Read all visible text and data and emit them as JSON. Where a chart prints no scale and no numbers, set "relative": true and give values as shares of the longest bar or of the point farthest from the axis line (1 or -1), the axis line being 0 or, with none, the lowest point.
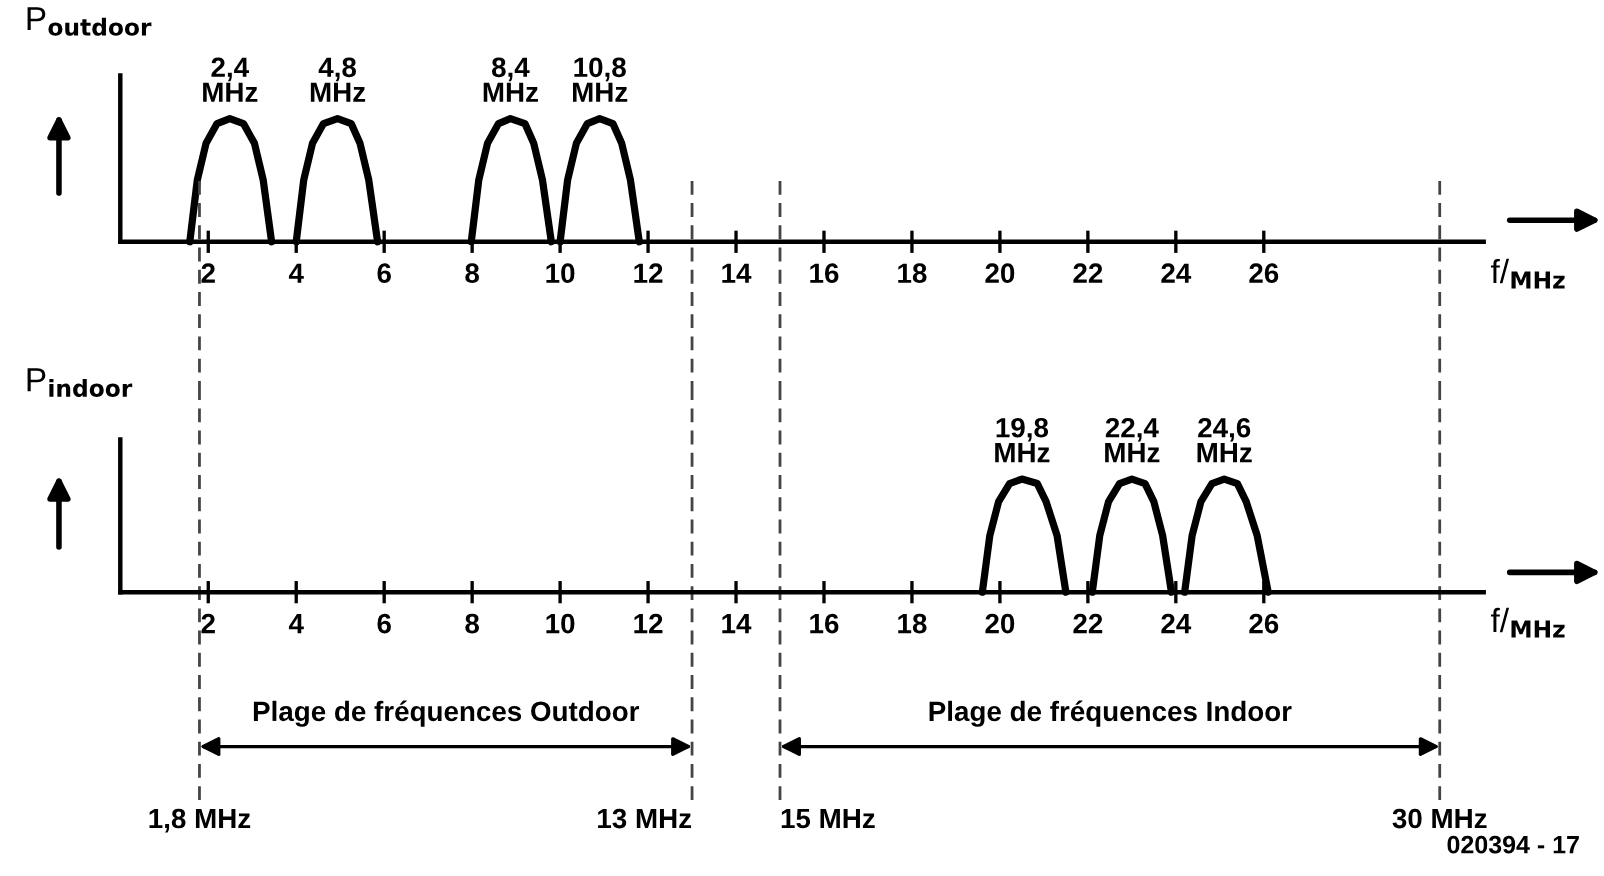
{
  "chart_data": [
    {
      "type": "line",
      "relative": true,
      "ylabel": "P$_{outdoor}$",
      "xlabel": "f/$_{MHz}$",
      "xlim": [
        0,
        31
      ],
      "xticks": [
        2,
        4,
        6,
        8,
        10,
        12,
        14,
        16,
        18,
        20,
        22,
        24,
        26
      ],
      "tick_labels": "x",
      "color": "#000000",
      "series": [
        {
          "x": [
            1.58,
            1.75,
            1.95,
            2.2,
            2.49,
            2.8,
            3.05,
            3.25,
            3.44
          ],
          "values": [
            0,
            0.5,
            0.8,
            0.96,
            1,
            0.96,
            0.8,
            0.5,
            0
          ]
        },
        {
          "x": [
            4.0,
            4.17,
            4.37,
            4.62,
            4.94,
            5.25,
            5.45,
            5.65,
            5.85
          ],
          "values": [
            0,
            0.5,
            0.8,
            0.96,
            1,
            0.96,
            0.8,
            0.5,
            0
          ]
        },
        {
          "x": [
            7.98,
            8.15,
            8.35,
            8.6,
            8.87,
            9.2,
            9.4,
            9.6,
            9.8
          ],
          "values": [
            0,
            0.5,
            0.8,
            0.96,
            1,
            0.96,
            0.8,
            0.5,
            0
          ]
        },
        {
          "x": [
            10.0,
            10.17,
            10.37,
            10.62,
            10.9,
            11.2,
            11.4,
            11.6,
            11.8
          ],
          "values": [
            0,
            0.5,
            0.8,
            0.96,
            1,
            0.96,
            0.8,
            0.5,
            0
          ]
        }
      ],
      "annotations": [
        {
          "text": "2,4\nMHz",
          "x": 2.49,
          "y": 1
        },
        {
          "text": "4,8\nMHz",
          "x": 4.94,
          "y": 1
        },
        {
          "text": "8,4\nMHz",
          "x": 8.87,
          "y": 1
        },
        {
          "text": "10,8\nMHz",
          "x": 10.9,
          "y": 1
        }
      ],
      "ref_lines": [
        {
          "axis": "x",
          "value": 1.8,
          "line_style": "dashed"
        },
        {
          "axis": "x",
          "value": 13,
          "line_style": "dashed"
        },
        {
          "axis": "x",
          "value": 15,
          "line_style": "dashed"
        },
        {
          "axis": "x",
          "value": 30,
          "line_style": "dashed"
        }
      ]
    },
    {
      "type": "line",
      "relative": true,
      "ylabel": "P$_{indoor}$",
      "xlabel": "f/$_{MHz}$",
      "xlim": [
        0,
        31
      ],
      "xticks": [
        2,
        4,
        6,
        8,
        10,
        12,
        14,
        16,
        18,
        20,
        22,
        24,
        26
      ],
      "tick_labels": "x",
      "color": "#000000",
      "series": [
        {
          "x": [
            19.6,
            19.77,
            19.97,
            20.22,
            20.5,
            20.85,
            21.05,
            21.3,
            21.5
          ],
          "values": [
            0,
            0.5,
            0.8,
            0.96,
            1,
            0.96,
            0.8,
            0.5,
            0
          ]
        },
        {
          "x": [
            22.1,
            22.27,
            22.47,
            22.72,
            23.0,
            23.3,
            23.5,
            23.7,
            23.9
          ],
          "values": [
            0,
            0.5,
            0.8,
            0.96,
            1,
            0.96,
            0.8,
            0.5,
            0
          ]
        },
        {
          "x": [
            24.2,
            24.37,
            24.57,
            24.82,
            25.1,
            25.4,
            25.6,
            25.85,
            26.1
          ],
          "values": [
            0,
            0.5,
            0.8,
            0.96,
            1,
            0.96,
            0.8,
            0.5,
            0
          ]
        }
      ],
      "annotations": [
        {
          "text": "19,8\nMHz",
          "x": 20.5,
          "y": 1
        },
        {
          "text": "22,4\nMHz",
          "x": 23.0,
          "y": 1
        },
        {
          "text": "24,6\nMHz",
          "x": 25.1,
          "y": 1
        },
        "Plage de fréquences Outdoor",
        "Plage de fréquences Indoor",
        "020394 - 17"
      ],
      "ref_lines": [
        {
          "axis": "x",
          "value": 1.8,
          "label": "1,8 MHz",
          "line_style": "dashed"
        },
        {
          "axis": "x",
          "value": 13,
          "label": "13 MHz",
          "line_style": "dashed"
        },
        {
          "axis": "x",
          "value": 15,
          "label": "15 MHz",
          "line_style": "dashed"
        },
        {
          "axis": "x",
          "value": 30,
          "label": "30 MHz",
          "line_style": "dashed"
        }
      ]
    }
  ]
}
